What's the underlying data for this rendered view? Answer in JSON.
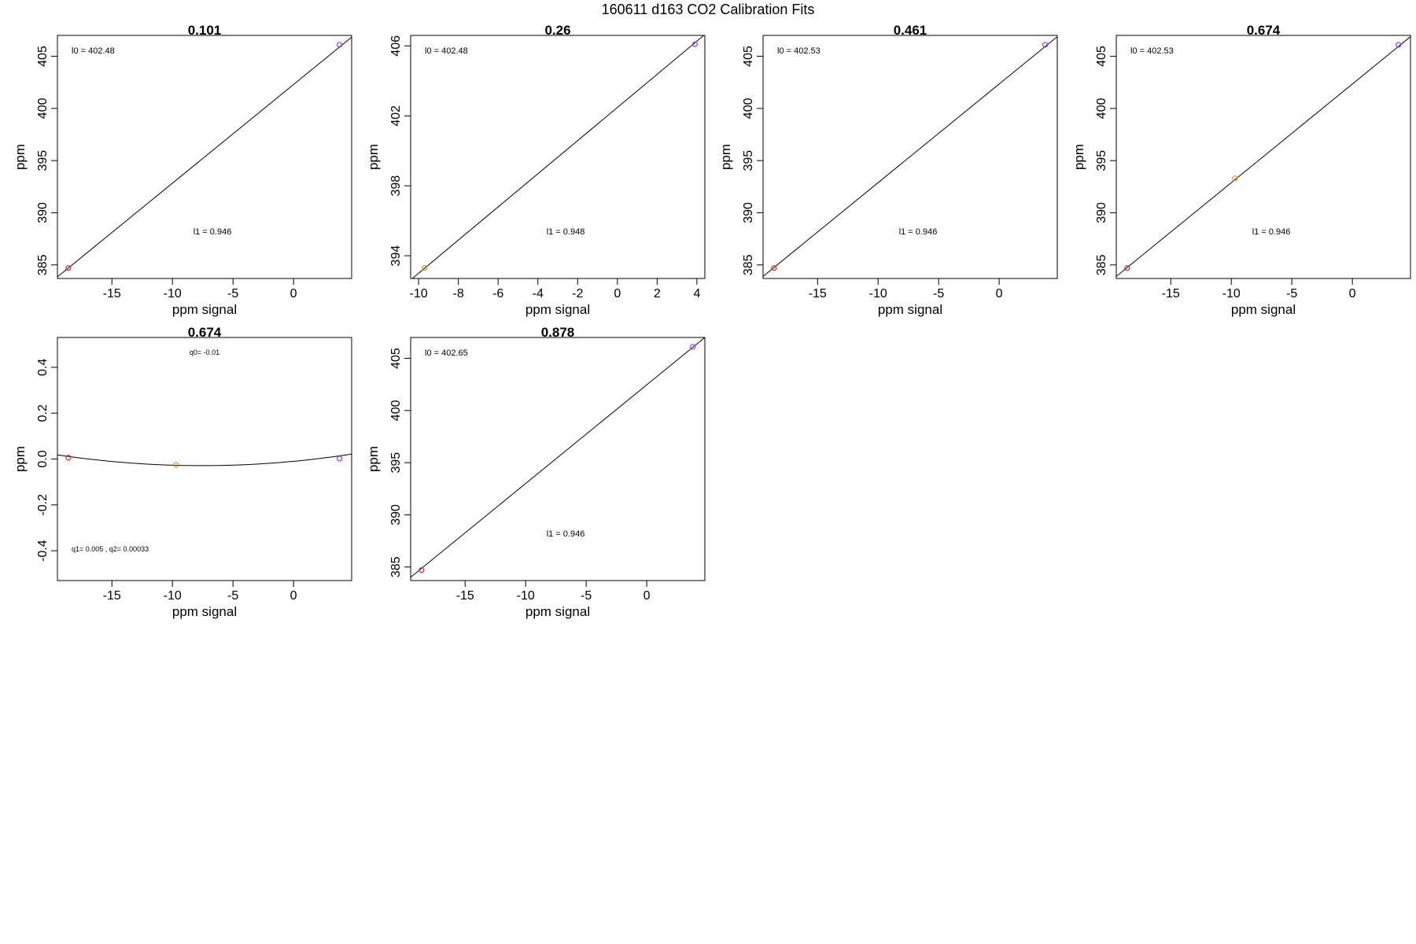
{
  "page_title": "160611   d163   CO2 Calibration Fits",
  "chart_data": [
    {
      "type": "scatter",
      "title": "0.101",
      "xlabel": "ppm signal",
      "ylabel": "ppm",
      "xlim": [
        -19.5,
        4.8
      ],
      "ylim": [
        383.7,
        407.0
      ],
      "x_ticks": [
        -15,
        -10,
        -5,
        0
      ],
      "y_ticks": [
        385,
        390,
        395,
        400,
        405
      ],
      "annotations": [
        {
          "text": "l0 =  402.48",
          "position": "top-left"
        },
        {
          "text": "l1 =  0.946",
          "position": "center-lower"
        }
      ],
      "points": [
        {
          "x": -18.6,
          "y": 384.7,
          "color": "#dd2222"
        },
        {
          "x": 3.8,
          "y": 406.1,
          "color": "#9933ff"
        }
      ],
      "fit_line": {
        "x": [
          -19.5,
          4.8
        ],
        "y": [
          383.85,
          406.83
        ]
      }
    },
    {
      "type": "scatter",
      "title": "0.26",
      "xlabel": "ppm signal",
      "ylabel": "ppm",
      "xlim": [
        -10.4,
        4.4
      ],
      "ylim": [
        392.7,
        406.6
      ],
      "x_ticks": [
        -10,
        -8,
        -6,
        -4,
        -2,
        0,
        2,
        4
      ],
      "y_ticks": [
        394,
        398,
        402,
        406
      ],
      "annotations": [
        {
          "text": "l0 =  402.48",
          "position": "top-left"
        },
        {
          "text": "l1 =  0.948",
          "position": "center-lower"
        }
      ],
      "points": [
        {
          "x": -9.7,
          "y": 393.3,
          "color": "#e69500"
        },
        {
          "x": 3.9,
          "y": 406.1,
          "color": "#9933ff"
        }
      ],
      "fit_line": {
        "x": [
          -10.4,
          4.4
        ],
        "y": [
          392.62,
          406.65
        ]
      }
    },
    {
      "type": "scatter",
      "title": "0.461",
      "xlabel": "ppm signal",
      "ylabel": "ppm",
      "xlim": [
        -19.5,
        4.8
      ],
      "ylim": [
        383.7,
        407.0
      ],
      "x_ticks": [
        -15,
        -10,
        -5,
        0
      ],
      "y_ticks": [
        385,
        390,
        395,
        400,
        405
      ],
      "annotations": [
        {
          "text": "l0 =  402.53",
          "position": "top-left"
        },
        {
          "text": "l1 =  0.946",
          "position": "center-lower"
        }
      ],
      "points": [
        {
          "x": -18.6,
          "y": 384.7,
          "color": "#dd2222"
        },
        {
          "x": 3.8,
          "y": 406.1,
          "color": "#9933ff"
        }
      ],
      "fit_line": {
        "x": [
          -19.5,
          4.8
        ],
        "y": [
          383.9,
          406.88
        ]
      }
    },
    {
      "type": "scatter",
      "title": "0.674",
      "xlabel": "ppm signal",
      "ylabel": "ppm",
      "xlim": [
        -19.5,
        4.8
      ],
      "ylim": [
        383.7,
        407.0
      ],
      "x_ticks": [
        -15,
        -10,
        -5,
        0
      ],
      "y_ticks": [
        385,
        390,
        395,
        400,
        405
      ],
      "annotations": [
        {
          "text": "l0 =  402.53",
          "position": "top-left"
        },
        {
          "text": "l1 =  0.946",
          "position": "center-lower"
        }
      ],
      "points": [
        {
          "x": -18.6,
          "y": 384.7,
          "color": "#dd2222"
        },
        {
          "x": -9.7,
          "y": 393.3,
          "color": "#e69500"
        },
        {
          "x": 3.8,
          "y": 406.1,
          "color": "#9933ff"
        }
      ],
      "fit_line": {
        "x": [
          -19.5,
          4.8
        ],
        "y": [
          383.9,
          406.88
        ]
      }
    },
    {
      "type": "scatter",
      "title": "0.674",
      "xlabel": "ppm signal",
      "ylabel": "ppm",
      "xlim": [
        -19.5,
        4.8
      ],
      "ylim": [
        -0.53,
        0.53
      ],
      "x_ticks": [
        -15,
        -10,
        -5,
        0
      ],
      "y_ticks": [
        -0.4,
        -0.2,
        0.0,
        0.2,
        0.4
      ],
      "y_tick_labels": [
        "-0.4",
        "-0.2",
        "0.0",
        "0.2",
        "0.4"
      ],
      "annotations": [
        {
          "text": "q0= -0.01",
          "position": "top-center"
        },
        {
          "text": "q1= 0.005 , q2= 0.00033",
          "position": "bottom-left"
        }
      ],
      "points": [
        {
          "x": -18.6,
          "y": 0.006,
          "color": "#dd2222"
        },
        {
          "x": -9.7,
          "y": -0.025,
          "color": "#e69500"
        },
        {
          "x": 3.8,
          "y": 0.002,
          "color": "#9933ff"
        }
      ],
      "fit_curve": {
        "type": "quadratic",
        "q0": -0.01,
        "q1": 0.005,
        "q2": 0.00033
      }
    },
    {
      "type": "scatter",
      "title": "0.878",
      "xlabel": "ppm signal",
      "ylabel": "ppm",
      "xlim": [
        -19.5,
        4.8
      ],
      "ylim": [
        383.7,
        407.0
      ],
      "x_ticks": [
        -15,
        -10,
        -5,
        0
      ],
      "y_ticks": [
        385,
        390,
        395,
        400,
        405
      ],
      "annotations": [
        {
          "text": "l0 =  402.65",
          "position": "top-left"
        },
        {
          "text": "l1 =  0.946",
          "position": "center-lower"
        }
      ],
      "points": [
        {
          "x": -18.6,
          "y": 384.7,
          "color": "#dd2222"
        },
        {
          "x": 3.8,
          "y": 406.1,
          "color": "#9933ff"
        }
      ],
      "fit_line": {
        "x": [
          -19.5,
          4.8
        ],
        "y": [
          384.02,
          407.0
        ]
      }
    }
  ]
}
